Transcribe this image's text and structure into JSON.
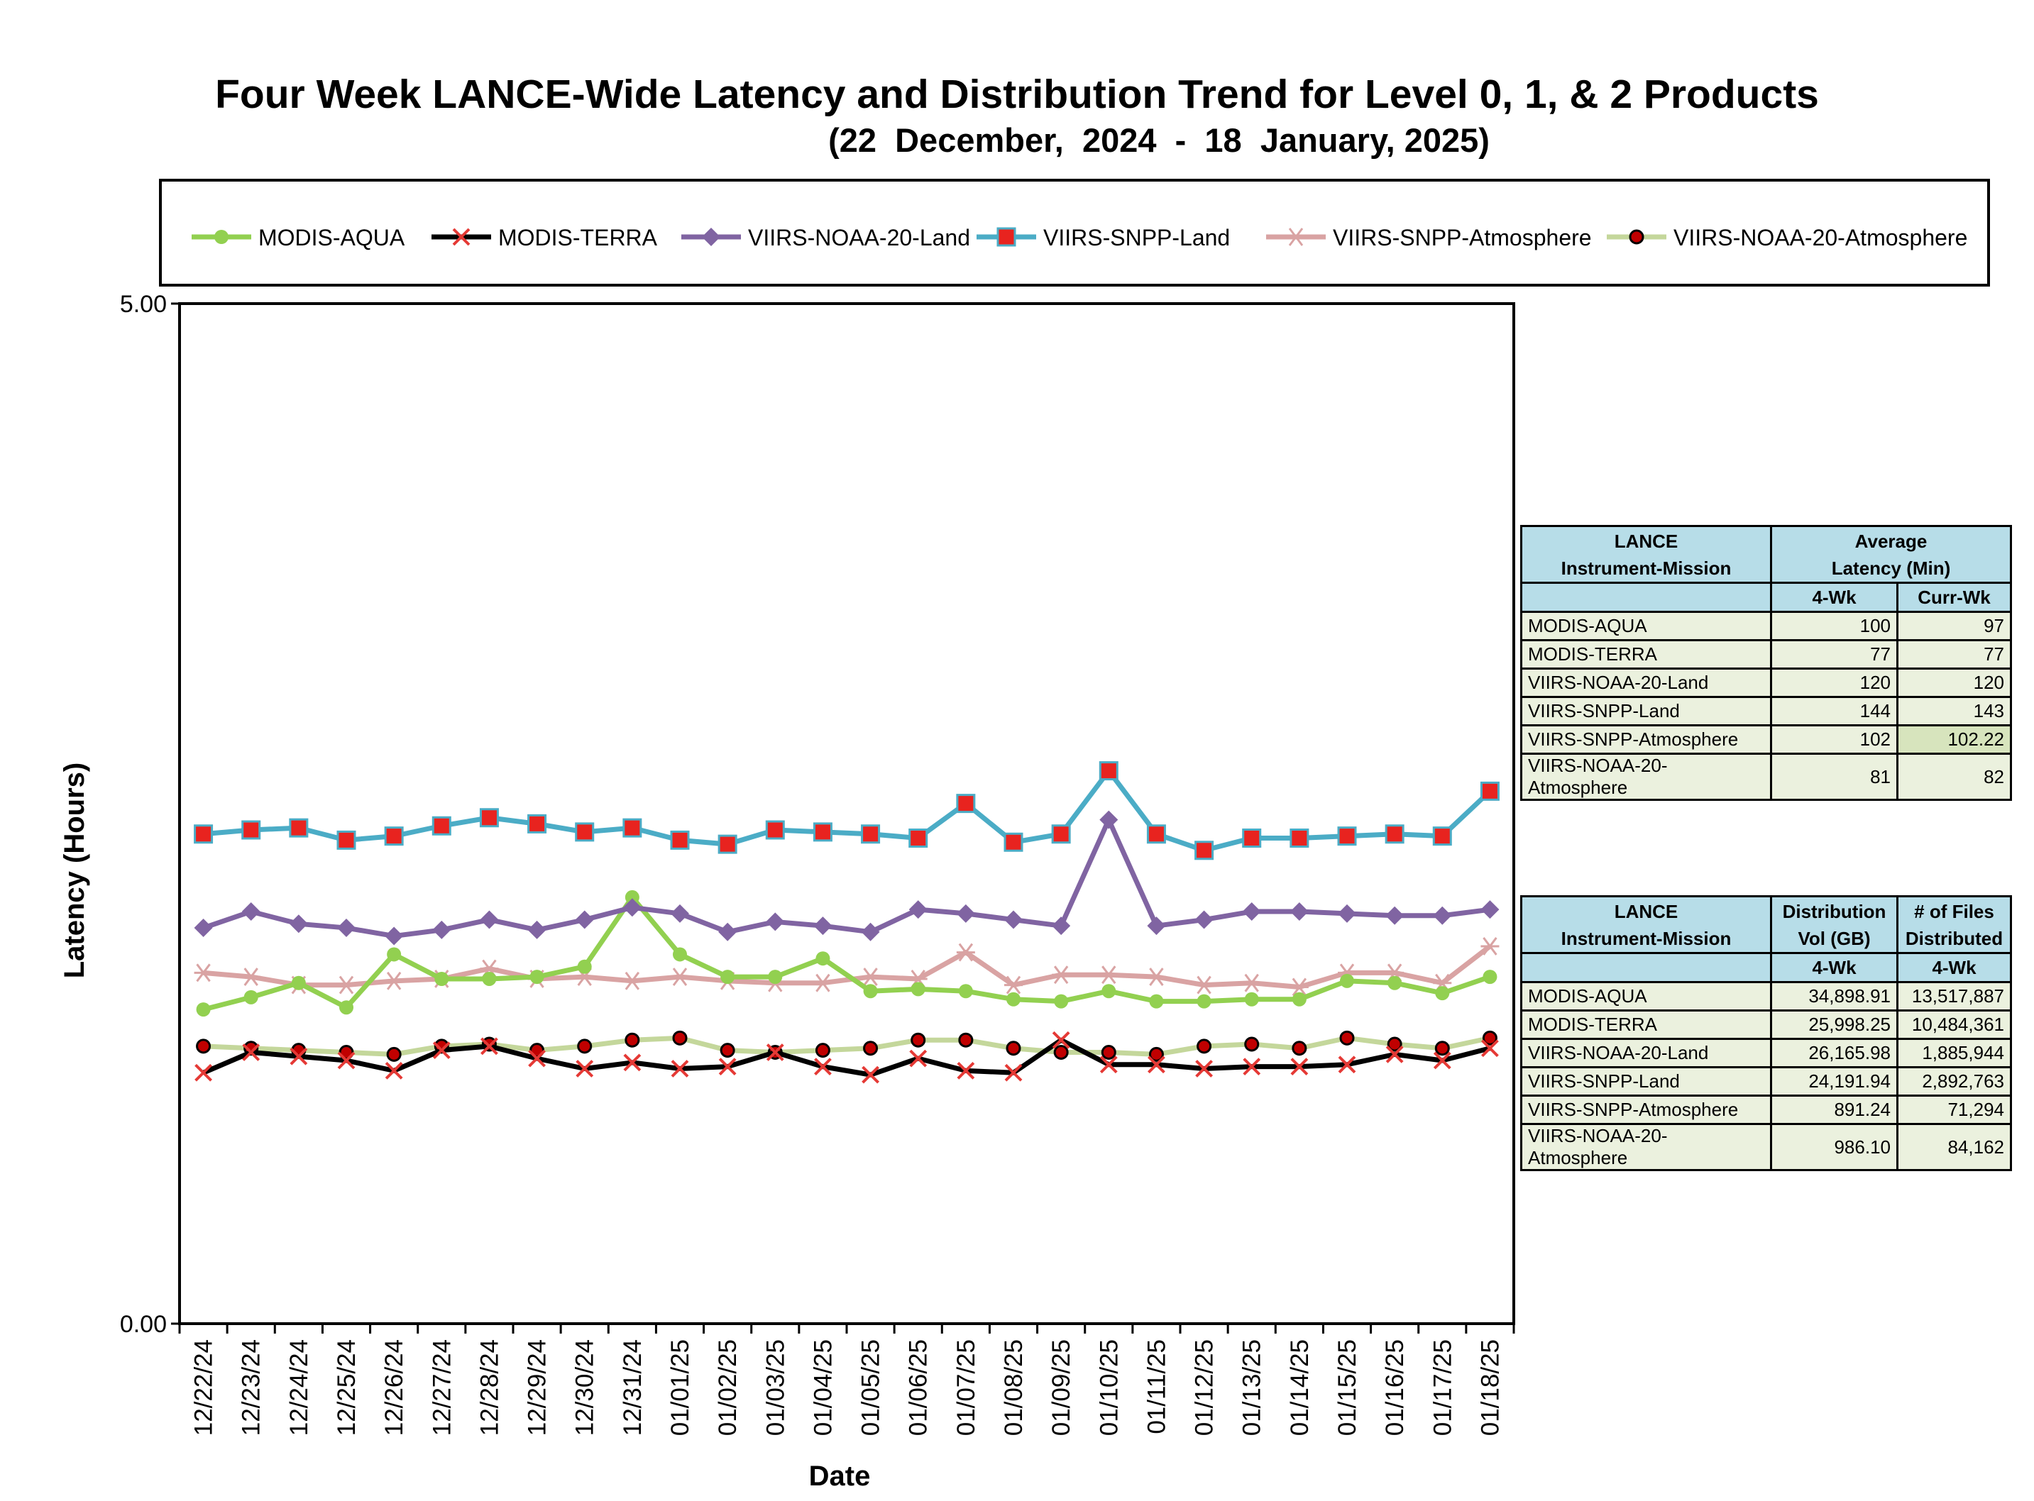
{
  "title": "Four Week LANCE-Wide Latency and Distribution Trend for Level 0, 1, & 2 Products",
  "subtitle": "(22  December,  2024  -  18  January, 2025)",
  "chart_data": {
    "type": "line",
    "xlabel": "Date",
    "ylabel": "Latency (Hours)",
    "ylim": [
      0,
      5
    ],
    "y_tick_labels": [
      "5.00",
      "0.00"
    ],
    "legend_position": "top",
    "grid": false,
    "categories": [
      "12/22/24",
      "12/23/24",
      "12/24/24",
      "12/25/24",
      "12/26/24",
      "12/27/24",
      "12/28/24",
      "12/29/24",
      "12/30/24",
      "12/31/24",
      "01/01/25",
      "01/02/25",
      "01/03/25",
      "01/04/25",
      "01/05/25",
      "01/06/25",
      "01/07/25",
      "01/08/25",
      "01/09/25",
      "01/10/25",
      "01/11/25",
      "01/12/25",
      "01/13/25",
      "01/14/25",
      "01/15/25",
      "01/16/25",
      "01/17/25",
      "01/18/25"
    ],
    "series": [
      {
        "name": "MODIS-AQUA",
        "color": "#92d050",
        "marker": "circle",
        "values": [
          1.54,
          1.6,
          1.67,
          1.55,
          1.81,
          1.69,
          1.69,
          1.7,
          1.75,
          2.09,
          1.81,
          1.7,
          1.7,
          1.79,
          1.63,
          1.64,
          1.63,
          1.59,
          1.58,
          1.63,
          1.58,
          1.58,
          1.59,
          1.59,
          1.68,
          1.67,
          1.62,
          1.7
        ]
      },
      {
        "name": "MODIS-TERRA",
        "color": "#000000",
        "marker": "x",
        "values": [
          1.23,
          1.33,
          1.31,
          1.29,
          1.24,
          1.34,
          1.36,
          1.3,
          1.25,
          1.28,
          1.25,
          1.26,
          1.33,
          1.26,
          1.22,
          1.3,
          1.24,
          1.23,
          1.39,
          1.27,
          1.27,
          1.25,
          1.26,
          1.26,
          1.27,
          1.32,
          1.29,
          1.35
        ]
      },
      {
        "name": "VIIRS-NOAA-20-Land",
        "color": "#8064a2",
        "marker": "diamond",
        "values": [
          1.94,
          2.02,
          1.96,
          1.94,
          1.9,
          1.93,
          1.98,
          1.93,
          1.98,
          2.04,
          2.01,
          1.92,
          1.97,
          1.95,
          1.92,
          2.03,
          2.01,
          1.98,
          1.95,
          2.47,
          1.95,
          1.98,
          2.02,
          2.02,
          2.01,
          2.0,
          2.0,
          2.03
        ]
      },
      {
        "name": "VIIRS-SNPP-Land",
        "color": "#4bacc6",
        "marker": "square",
        "values": [
          2.4,
          2.42,
          2.43,
          2.37,
          2.39,
          2.44,
          2.48,
          2.45,
          2.41,
          2.43,
          2.37,
          2.35,
          2.42,
          2.41,
          2.4,
          2.38,
          2.55,
          2.36,
          2.4,
          2.71,
          2.4,
          2.32,
          2.38,
          2.38,
          2.39,
          2.4,
          2.39,
          2.61
        ]
      },
      {
        "name": "VIIRS-SNPP-Atmosphere",
        "color": "#d9a3a3",
        "marker": "asterisk",
        "values": [
          1.72,
          1.7,
          1.66,
          1.66,
          1.68,
          1.69,
          1.74,
          1.69,
          1.7,
          1.68,
          1.7,
          1.68,
          1.67,
          1.67,
          1.7,
          1.69,
          1.82,
          1.66,
          1.71,
          1.71,
          1.7,
          1.66,
          1.67,
          1.65,
          1.72,
          1.72,
          1.67,
          1.85
        ]
      },
      {
        "name": "VIIRS-NOAA-20-Atmosphere",
        "color": "#c4d79b",
        "marker": "dot",
        "values": [
          1.36,
          1.35,
          1.34,
          1.33,
          1.32,
          1.36,
          1.37,
          1.34,
          1.36,
          1.39,
          1.4,
          1.34,
          1.33,
          1.34,
          1.35,
          1.39,
          1.39,
          1.35,
          1.33,
          1.33,
          1.32,
          1.36,
          1.37,
          1.35,
          1.4,
          1.37,
          1.35,
          1.4
        ]
      }
    ]
  },
  "latency_table": {
    "header_col1": "LANCE\nInstrument-Mission",
    "header_col2": "Average\nLatency (Min)",
    "sub_4wk": "4-Wk",
    "sub_currwk": "Curr-Wk",
    "rows": [
      {
        "name": "MODIS-AQUA",
        "wk4": "100",
        "curr": "97"
      },
      {
        "name": "MODIS-TERRA",
        "wk4": "77",
        "curr": "77"
      },
      {
        "name": "VIIRS-NOAA-20-Land",
        "wk4": "120",
        "curr": "120"
      },
      {
        "name": "VIIRS-SNPP-Land",
        "wk4": "144",
        "curr": "143"
      },
      {
        "name": "VIIRS-SNPP-Atmosphere",
        "wk4": "102",
        "curr": "102.22"
      },
      {
        "name": "VIIRS-NOAA-20-Atmosphere",
        "wk4": "81",
        "curr": "82"
      }
    ]
  },
  "distribution_table": {
    "header_col1": "LANCE\nInstrument-Mission",
    "header_col2": "Distribution\nVol (GB)",
    "header_col3": "# of Files\nDistributed",
    "sub_col2": "4-Wk",
    "sub_col3": "4-Wk",
    "rows": [
      {
        "name": "MODIS-AQUA",
        "vol": "34,898.91",
        "files": "13,517,887"
      },
      {
        "name": "MODIS-TERRA",
        "vol": "25,998.25",
        "files": "10,484,361"
      },
      {
        "name": "VIIRS-NOAA-20-Land",
        "vol": "26,165.98",
        "files": "1,885,944"
      },
      {
        "name": "VIIRS-SNPP-Land",
        "vol": "24,191.94",
        "files": "2,892,763"
      },
      {
        "name": "VIIRS-SNPP-Atmosphere",
        "vol": "891.24",
        "files": "71,294"
      },
      {
        "name": "VIIRS-NOAA-20-Atmosphere",
        "vol": "986.10",
        "files": "84,162"
      }
    ]
  }
}
